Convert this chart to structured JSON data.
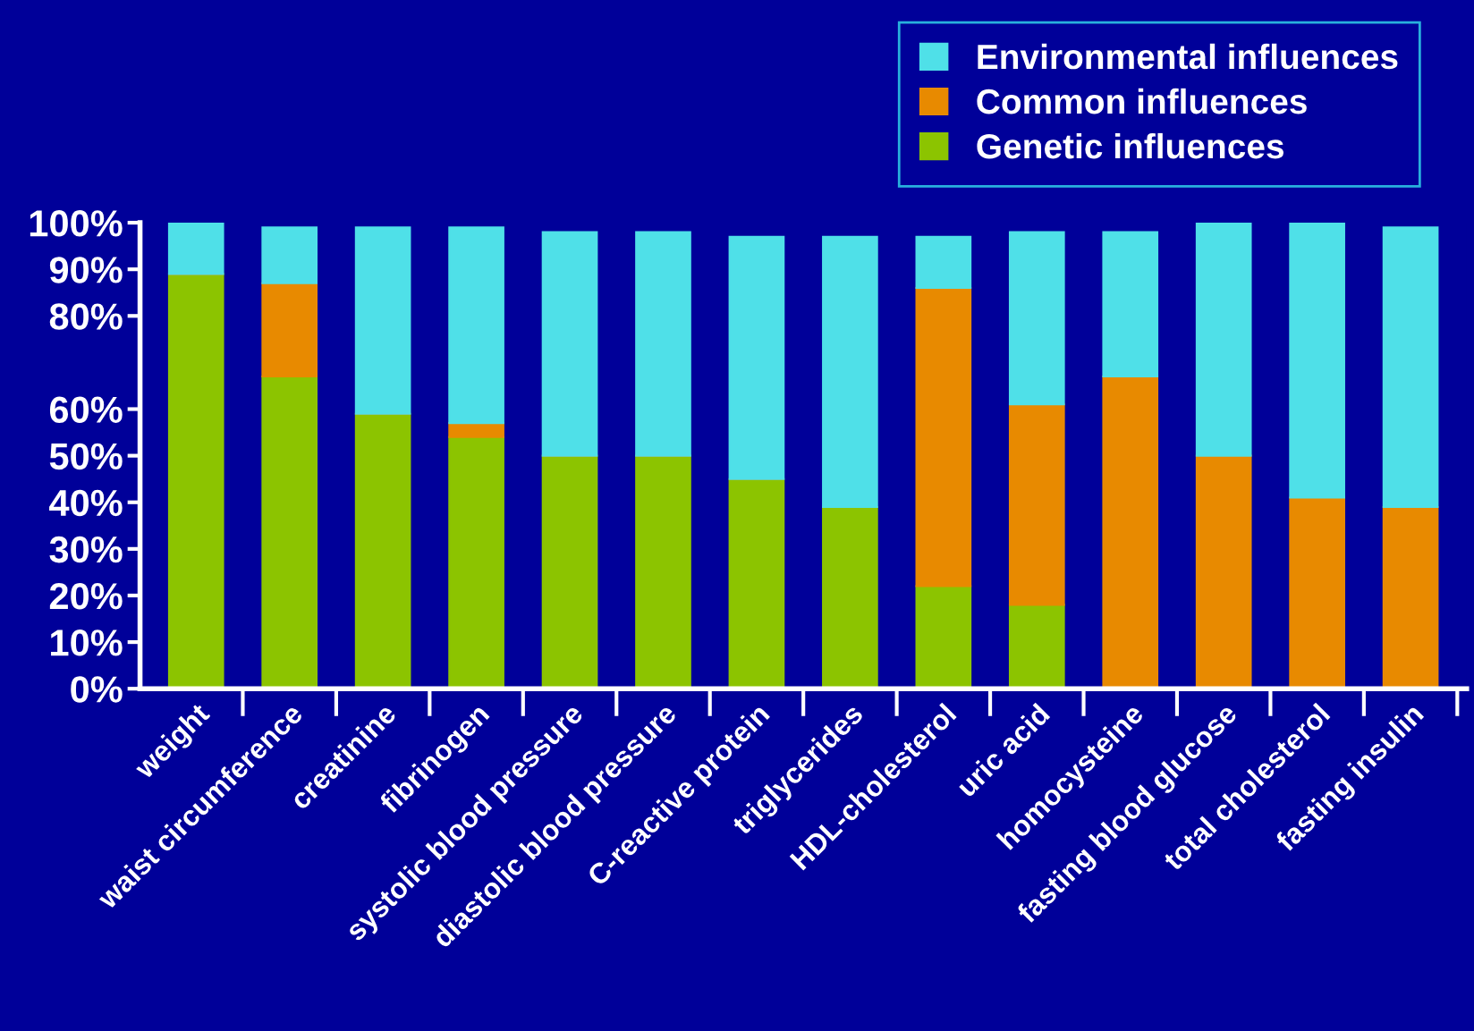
{
  "chart_data": {
    "type": "bar",
    "stacked": true,
    "categories": [
      "weight",
      "waist circumference",
      "creatinine",
      "fibrinogen",
      "systolic blood pressure",
      "diastolic blood pressure",
      "C-reactive protein",
      "triglycerides",
      "HDL-cholesterol",
      "uric acid",
      "homocysteine",
      "fasting blood glucose",
      "total cholesterol",
      "fasting insulin"
    ],
    "series": [
      {
        "name": "Genetic influences",
        "color": "#8cc400",
        "values": [
          89,
          67,
          59,
          54,
          50,
          50,
          45,
          39,
          22,
          18,
          0,
          0,
          0,
          0
        ]
      },
      {
        "name": "Common influences",
        "color": "#e88a00",
        "values": [
          0,
          20,
          0,
          3,
          0,
          0,
          0,
          0,
          64,
          43,
          67,
          50,
          41,
          39
        ]
      },
      {
        "name": "Environmental influences",
        "color": "#4fe0e8",
        "values": [
          11,
          12,
          40,
          42,
          48,
          48,
          52,
          58,
          11,
          37,
          31,
          50,
          59,
          60
        ]
      }
    ],
    "ylim": [
      0,
      100
    ],
    "yticks": [
      {
        "value": 0,
        "label": "0%"
      },
      {
        "value": 10,
        "label": "10%"
      },
      {
        "value": 20,
        "label": "20%"
      },
      {
        "value": 30,
        "label": "30%"
      },
      {
        "value": 40,
        "label": "40%"
      },
      {
        "value": 50,
        "label": "50%"
      },
      {
        "value": 60,
        "label": "60%"
      },
      {
        "value": 80,
        "label": "80%"
      },
      {
        "value": 90,
        "label": "90%"
      },
      {
        "value": 100,
        "label": "100%"
      }
    ],
    "legend": "top right",
    "grid": false
  }
}
